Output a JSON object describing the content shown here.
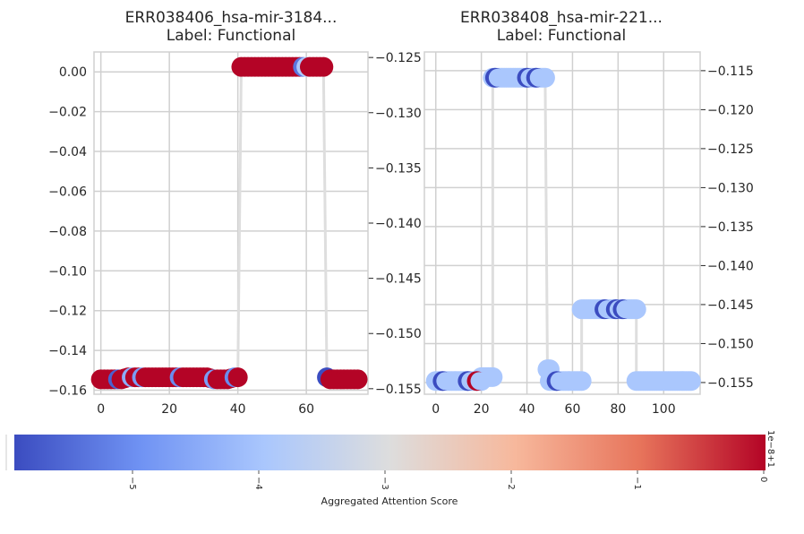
{
  "chart_data": [
    {
      "type": "line",
      "title": "ERR038406_hsa-mir-3184...",
      "subtitle": "Label: Functional",
      "xlabel": "",
      "ylabel": "",
      "xlim": [
        -2,
        78
      ],
      "ylim": [
        -0.162,
        0.01
      ],
      "xticks": [
        0,
        20,
        40,
        60
      ],
      "xtick_labels": [
        "0",
        "20",
        "40",
        "60"
      ],
      "yticks": [
        0.0,
        -0.02,
        -0.04,
        -0.06,
        -0.08,
        -0.1,
        -0.12,
        -0.14,
        -0.16
      ],
      "ytick_labels": [
        "0.00",
        "−0.02",
        "−0.04",
        "−0.06",
        "−0.08",
        "−0.10",
        "−0.12",
        "−0.14",
        "−0.16"
      ],
      "right_ylim": [
        -0.1555,
        -0.1245
      ],
      "right_yticks": [
        -0.125,
        -0.13,
        -0.135,
        -0.14,
        -0.145,
        -0.15,
        -0.155
      ],
      "right_ytick_labels": [
        "−0.125",
        "−0.130",
        "−0.135",
        "−0.140",
        "−0.145",
        "−0.150",
        "−0.155"
      ],
      "grid": true,
      "line_color": "#dedede",
      "x": [
        0,
        1,
        2,
        3,
        4,
        5,
        6,
        7,
        8,
        9,
        10,
        11,
        12,
        13,
        14,
        15,
        16,
        17,
        18,
        19,
        20,
        21,
        22,
        23,
        24,
        25,
        26,
        27,
        28,
        29,
        30,
        31,
        32,
        33,
        34,
        35,
        36,
        37,
        38,
        39,
        40,
        41,
        42,
        43,
        44,
        45,
        46,
        47,
        48,
        49,
        50,
        51,
        52,
        53,
        54,
        55,
        56,
        57,
        58,
        59,
        60,
        61,
        62,
        63,
        64,
        65,
        66,
        67,
        68,
        69,
        70,
        71,
        72,
        73,
        74,
        75
      ],
      "y": [
        -0.1545,
        -0.1545,
        -0.1545,
        -0.1545,
        -0.1545,
        -0.1545,
        -0.1545,
        -0.154,
        -0.1535,
        -0.1535,
        -0.1535,
        -0.1535,
        -0.1535,
        -0.1535,
        -0.1535,
        -0.1535,
        -0.1535,
        -0.1535,
        -0.1535,
        -0.1535,
        -0.1535,
        -0.1535,
        -0.1535,
        -0.1535,
        -0.1535,
        -0.1535,
        -0.1535,
        -0.1535,
        -0.1535,
        -0.1535,
        -0.1535,
        -0.1535,
        -0.154,
        -0.1545,
        -0.1545,
        -0.1545,
        -0.1545,
        -0.1545,
        -0.154,
        -0.1535,
        -0.1535,
        0.0025,
        0.0025,
        0.0025,
        0.0025,
        0.0025,
        0.0025,
        0.0025,
        0.0025,
        0.0025,
        0.0025,
        0.0025,
        0.0025,
        0.0025,
        0.0025,
        0.0025,
        0.0025,
        0.0025,
        0.0025,
        0.0025,
        0.0025,
        0.0025,
        0.0025,
        0.0025,
        0.0025,
        0.0025,
        -0.1535,
        -0.1545,
        -0.1545,
        -0.1545,
        -0.1545,
        -0.1545,
        -0.1545,
        -0.1545,
        -0.1545,
        -0.1545
      ],
      "attention": [
        1,
        1,
        1,
        1,
        1,
        0.05,
        1,
        1,
        1,
        0.25,
        1,
        1,
        0.2,
        1,
        1,
        1,
        1,
        1,
        1,
        1,
        1,
        1,
        1,
        0.15,
        1,
        1,
        1,
        1,
        1,
        1,
        1,
        1,
        1,
        0.2,
        1,
        1,
        1,
        1,
        1,
        0.15,
        1,
        1,
        1,
        1,
        1,
        1,
        1,
        1,
        1,
        1,
        1,
        1,
        1,
        1,
        1,
        1,
        1,
        1,
        1,
        0.1,
        0.35,
        1,
        1,
        1,
        1,
        1,
        0.0,
        1,
        1,
        1,
        1,
        1,
        1,
        1,
        1,
        1
      ]
    },
    {
      "type": "line",
      "title": "ERR038408_hsa-mir-221...",
      "subtitle": "Label: Functional",
      "xlabel": "",
      "ylabel": "",
      "xlim": [
        -5,
        116
      ],
      "ylim": [
        -0.1565,
        -0.1126
      ],
      "xticks": [
        0,
        20,
        40,
        60,
        80,
        100
      ],
      "xtick_labels": [
        "0",
        "20",
        "40",
        "60",
        "80",
        "100"
      ],
      "yticks": [
        -0.115,
        -0.12,
        -0.125,
        -0.13,
        -0.135,
        -0.14,
        -0.145,
        -0.15,
        -0.155
      ],
      "ytick_labels": [
        "−0.115",
        "−0.120",
        "−0.125",
        "−0.130",
        "−0.135",
        "−0.140",
        "−0.145",
        "−0.150",
        "−0.155"
      ],
      "grid": true,
      "line_color": "#dedede",
      "segments": [
        {
          "x0": 0,
          "x1": 20,
          "y": -0.1548
        },
        {
          "x0": 20,
          "x1": 25,
          "y": -0.1543
        },
        {
          "x0": 25,
          "x1": 48,
          "y": -0.1159
        },
        {
          "x0": 49,
          "x1": 50,
          "y": -0.1533
        },
        {
          "x0": 50,
          "x1": 64,
          "y": -0.1548
        },
        {
          "x0": 64,
          "x1": 88,
          "y": -0.1456
        },
        {
          "x0": 88,
          "x1": 112,
          "y": -0.1548
        }
      ],
      "dark_markers": [
        {
          "x": 3,
          "y": -0.1548
        },
        {
          "x": 14,
          "y": -0.1548
        },
        {
          "x": 26,
          "y": -0.1159
        },
        {
          "x": 40,
          "y": -0.1159
        },
        {
          "x": 44,
          "y": -0.1159
        },
        {
          "x": 53,
          "y": -0.1548
        },
        {
          "x": 74,
          "y": -0.1456
        },
        {
          "x": 79,
          "y": -0.1456
        },
        {
          "x": 82,
          "y": -0.1456
        }
      ],
      "red_markers": [
        {
          "x": 18,
          "y": -0.1548
        }
      ]
    }
  ],
  "colorbar": {
    "label": "Aggregated Attention Score",
    "cmap": [
      "#3b4cc0",
      "#6f92f3",
      "#aac7fd",
      "#dddddd",
      "#f7b89c",
      "#e7745b",
      "#b40426"
    ],
    "ticks": [
      "−5",
      "−4",
      "−3",
      "−2",
      "−1",
      "0"
    ],
    "offset_text": "1e−8+1"
  }
}
